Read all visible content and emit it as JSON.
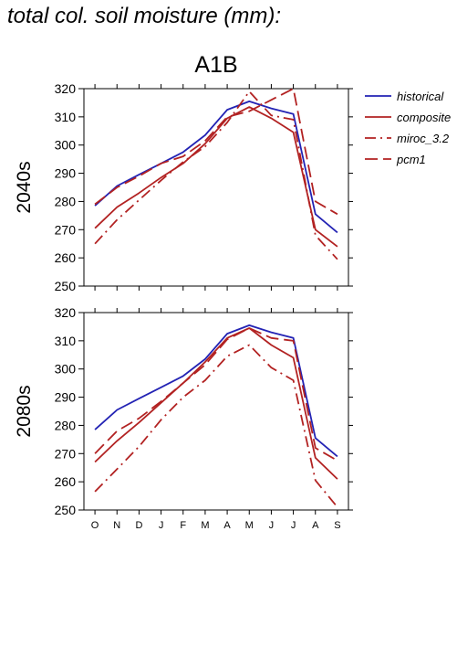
{
  "title": "total col. soil moisture (mm):",
  "scenario": "A1B",
  "legend": [
    {
      "name": "historical",
      "color": "#2323b4",
      "dash": "solid"
    },
    {
      "name": "composite",
      "color": "#b22222",
      "dash": "solid"
    },
    {
      "name": "miroc_3.2",
      "color": "#b22222",
      "dash": "dashdot"
    },
    {
      "name": "pcm1",
      "color": "#b22222",
      "dash": "dashed"
    }
  ],
  "chart_data": [
    {
      "type": "line",
      "title": "A1B",
      "ylabel": "2040s",
      "categories": [
        "O",
        "N",
        "D",
        "J",
        "F",
        "M",
        "A",
        "M",
        "J",
        "J",
        "A",
        "S"
      ],
      "ylim": [
        250,
        320
      ],
      "yticks": [
        250,
        260,
        270,
        280,
        290,
        300,
        310,
        320
      ],
      "series": [
        {
          "name": "historical",
          "values": [
            278.5,
            285.5,
            289.5,
            293.5,
            297.5,
            303.5,
            312.5,
            315.5,
            313.0,
            311.0,
            275.5,
            269.0
          ]
        },
        {
          "name": "composite",
          "values": [
            270.5,
            278.0,
            283.0,
            288.5,
            293.5,
            300.5,
            309.5,
            313.5,
            309.5,
            304.5,
            270.0,
            264.0
          ]
        },
        {
          "name": "miroc_3.2",
          "values": [
            265.0,
            273.5,
            280.5,
            287.5,
            294.0,
            299.5,
            308.0,
            319.0,
            310.5,
            309.0,
            268.0,
            259.5
          ]
        },
        {
          "name": "pcm1",
          "values": [
            279.0,
            285.0,
            289.0,
            293.5,
            296.0,
            301.5,
            310.0,
            312.0,
            316.0,
            320.0,
            280.0,
            275.5
          ]
        }
      ]
    },
    {
      "type": "line",
      "ylabel": "2080s",
      "categories": [
        "O",
        "N",
        "D",
        "J",
        "F",
        "M",
        "A",
        "M",
        "J",
        "J",
        "A",
        "S"
      ],
      "ylim": [
        250,
        320
      ],
      "yticks": [
        250,
        260,
        270,
        280,
        290,
        300,
        310,
        320
      ],
      "series": [
        {
          "name": "historical",
          "values": [
            278.5,
            285.5,
            289.5,
            293.5,
            297.5,
            303.5,
            312.5,
            315.5,
            313.0,
            311.0,
            275.5,
            269.0
          ]
        },
        {
          "name": "composite",
          "values": [
            267.0,
            274.5,
            281.0,
            288.0,
            295.0,
            302.5,
            311.0,
            314.5,
            308.5,
            304.0,
            268.5,
            261.0
          ]
        },
        {
          "name": "miroc_3.2",
          "values": [
            256.5,
            264.5,
            272.5,
            282.0,
            290.0,
            296.0,
            304.5,
            308.5,
            300.5,
            296.0,
            260.5,
            251.0
          ]
        },
        {
          "name": "pcm1",
          "values": [
            270.0,
            278.0,
            282.5,
            288.5,
            295.0,
            301.5,
            310.5,
            314.5,
            311.0,
            310.0,
            272.0,
            267.5
          ]
        }
      ]
    }
  ]
}
